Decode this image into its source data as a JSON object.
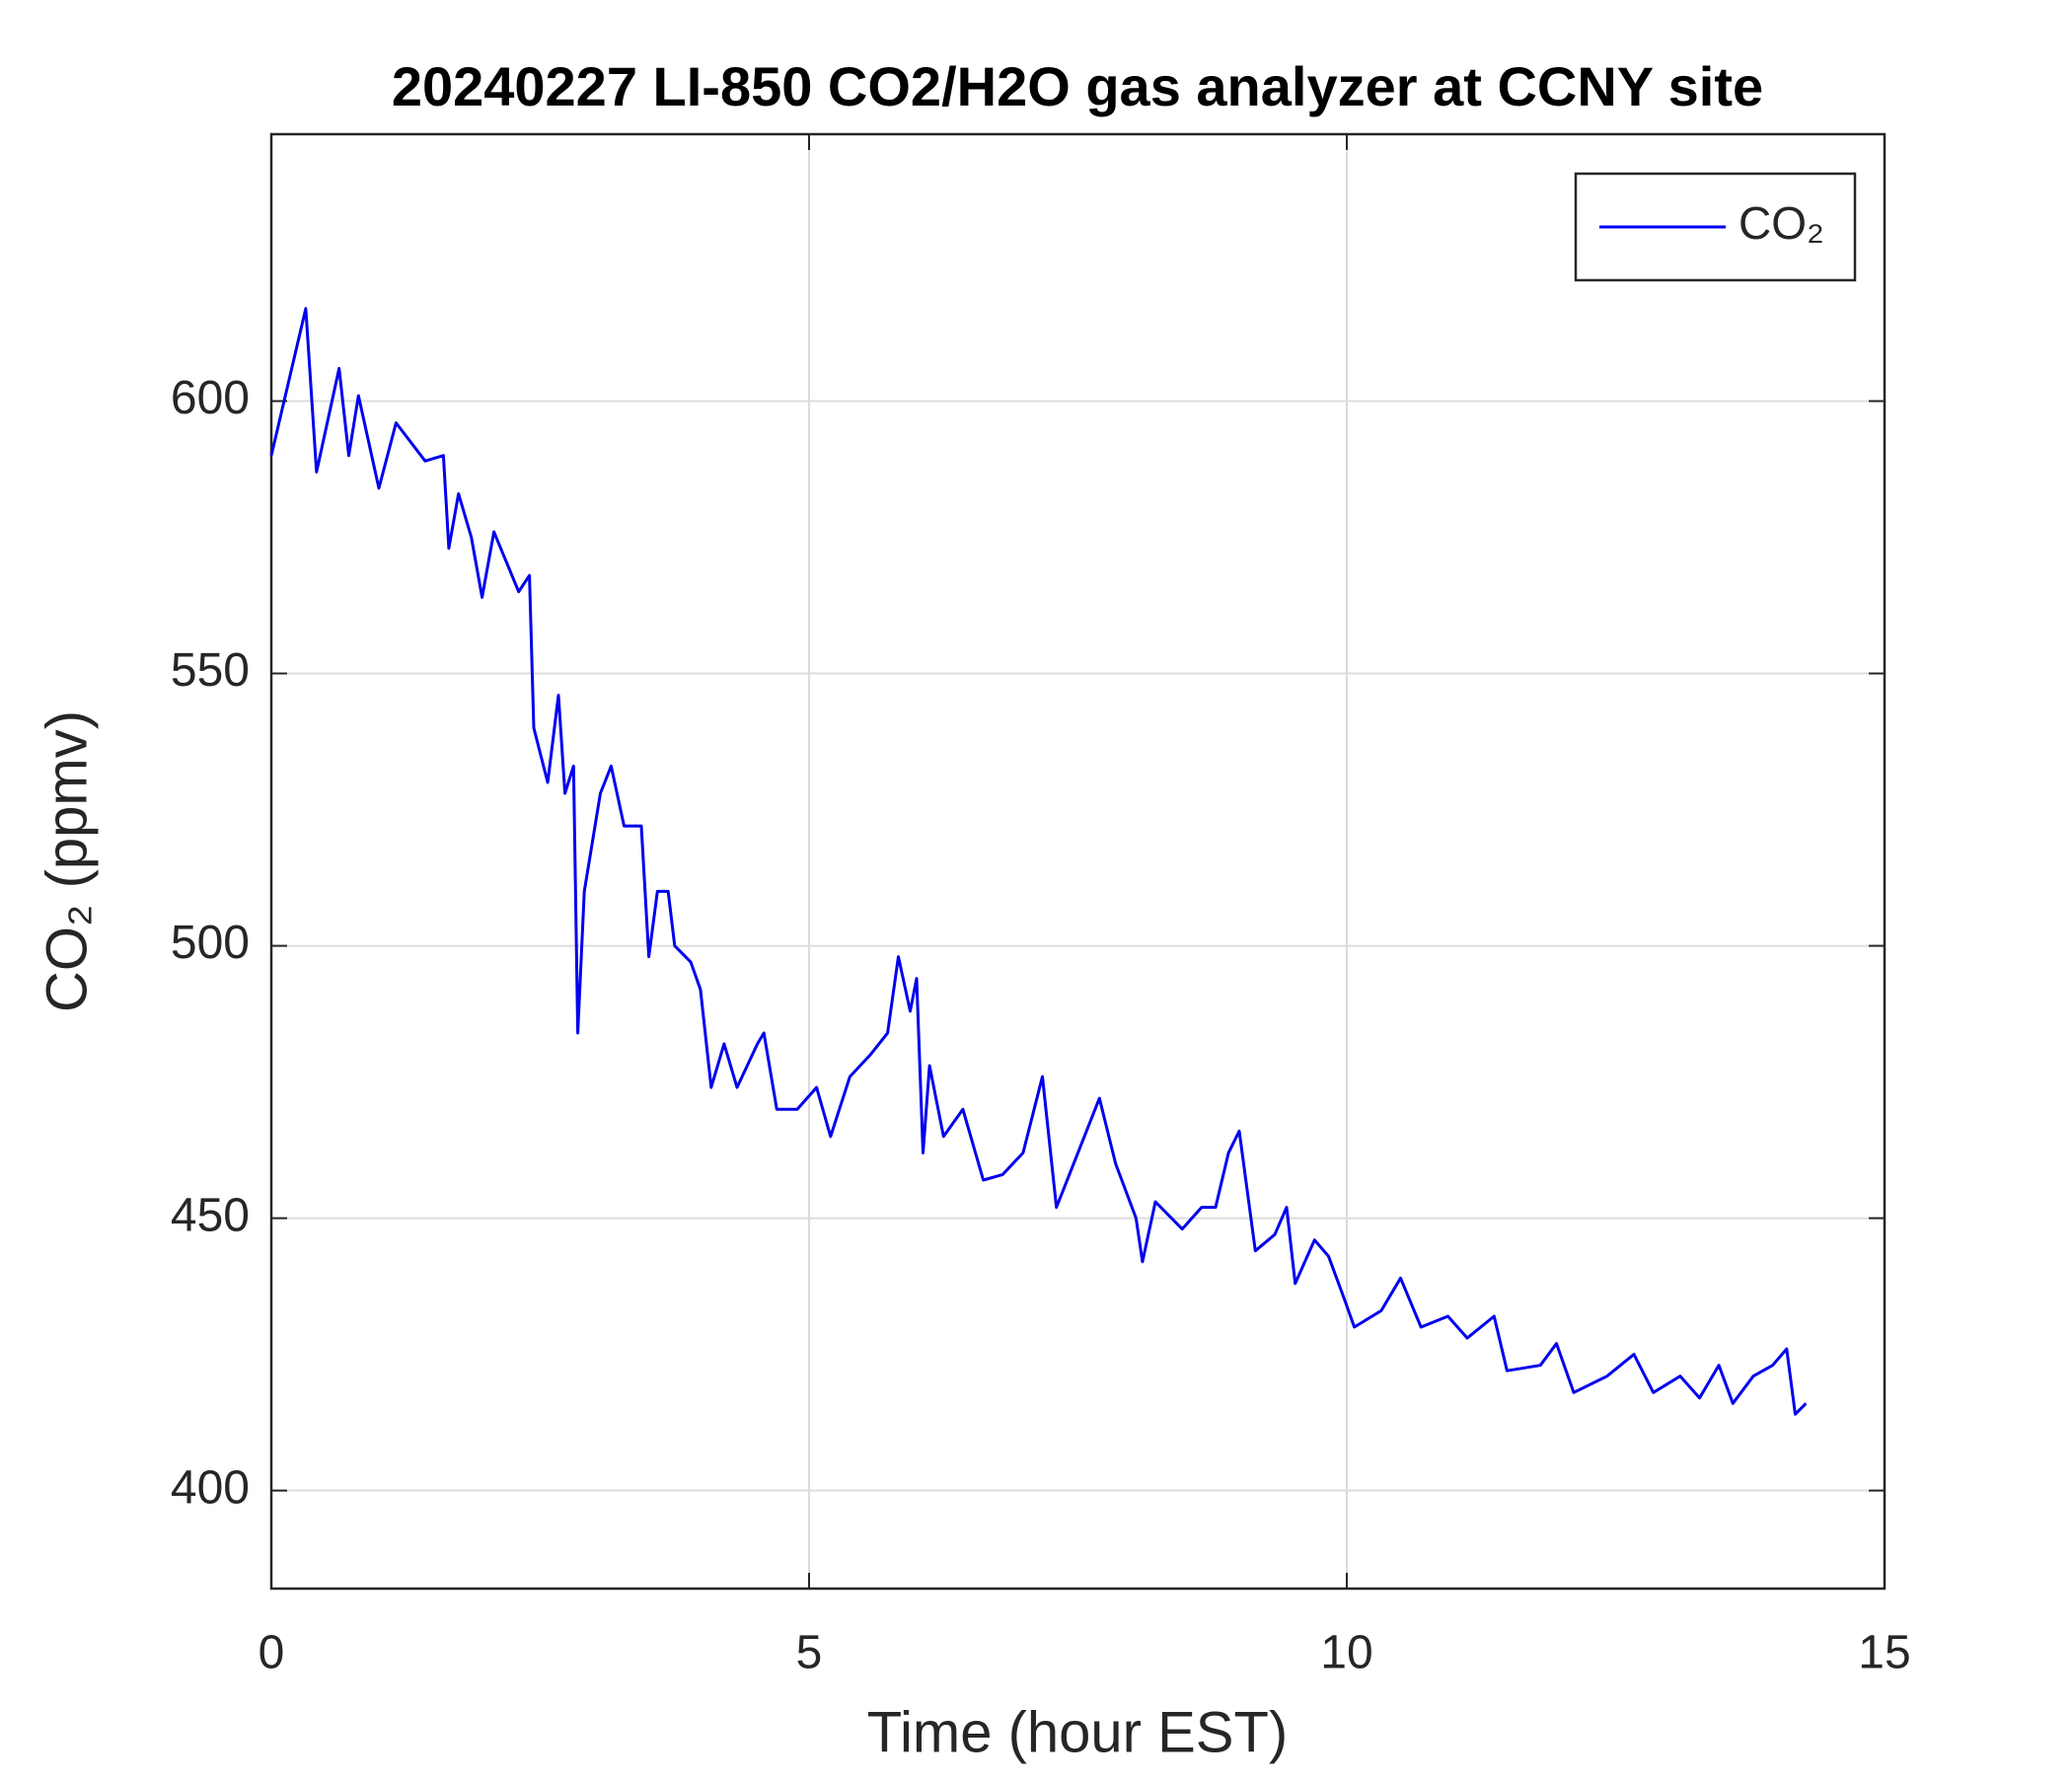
{
  "chart_data": {
    "type": "line",
    "title": "20240227 LI-850 CO2/H2O gas analyzer at CCNY site",
    "xlabel": "Time (hour EST)",
    "ylabel": "CO₂ (ppmv)",
    "x": [
      0,
      0.32,
      0.42,
      0.63,
      0.72,
      0.81,
      1.0,
      1.16,
      1.43,
      1.6,
      1.65,
      1.74,
      1.86,
      1.96,
      2.07,
      2.3,
      2.4,
      2.44,
      2.57,
      2.67,
      2.73,
      2.81,
      2.85,
      2.91,
      3.06,
      3.16,
      3.28,
      3.44,
      3.51,
      3.59,
      3.69,
      3.75,
      3.9,
      3.99,
      4.09,
      4.21,
      4.33,
      4.52,
      4.58,
      4.7,
      4.89,
      5.07,
      5.2,
      5.38,
      5.57,
      5.73,
      5.83,
      5.94,
      6.0,
      6.06,
      6.12,
      6.25,
      6.43,
      6.62,
      6.8,
      6.99,
      7.17,
      7.3,
      7.42,
      7.58,
      7.7,
      7.85,
      8.04,
      8.1,
      8.22,
      8.47,
      8.65,
      8.78,
      8.9,
      9.0,
      9.15,
      9.33,
      9.44,
      9.52,
      9.7,
      9.83,
      9.98,
      10.07,
      10.32,
      10.5,
      10.69,
      10.94,
      11.12,
      11.37,
      11.49,
      11.8,
      11.95,
      12.11,
      12.42,
      12.67,
      12.85,
      13.1,
      13.28,
      13.46,
      13.59,
      13.78,
      13.96,
      14.09,
      14.17,
      14.27
    ],
    "series": [
      {
        "name": "CO₂",
        "color": "#0000ee",
        "values": [
          590,
          617,
          587,
          606,
          590,
          601,
          584,
          596,
          589,
          590,
          573,
          583,
          575,
          564,
          576,
          565,
          568,
          540,
          530,
          546,
          528,
          533,
          484,
          510,
          528,
          533,
          522,
          522,
          498,
          510,
          510,
          500,
          497,
          492,
          474,
          482,
          474,
          482,
          484,
          470,
          470,
          474,
          465,
          476,
          480,
          484,
          498,
          488,
          494,
          462,
          478,
          465,
          470,
          457,
          458,
          462,
          476,
          452,
          458,
          466,
          472,
          460,
          450,
          442,
          453,
          448,
          452,
          452,
          462,
          466,
          444,
          447,
          452,
          438,
          446,
          443,
          435,
          430,
          433,
          439,
          430,
          432,
          428,
          432,
          422,
          423,
          427,
          418,
          421,
          425,
          418,
          421,
          417,
          423,
          416,
          421,
          423,
          426,
          414,
          416
        ]
      }
    ],
    "xlim": [
      0,
      15
    ],
    "ylim": [
      382,
      649
    ],
    "xticks": [
      0,
      5,
      10,
      15
    ],
    "yticks": [
      400,
      450,
      500,
      550,
      600
    ],
    "grid": true,
    "legend": "upper right"
  }
}
